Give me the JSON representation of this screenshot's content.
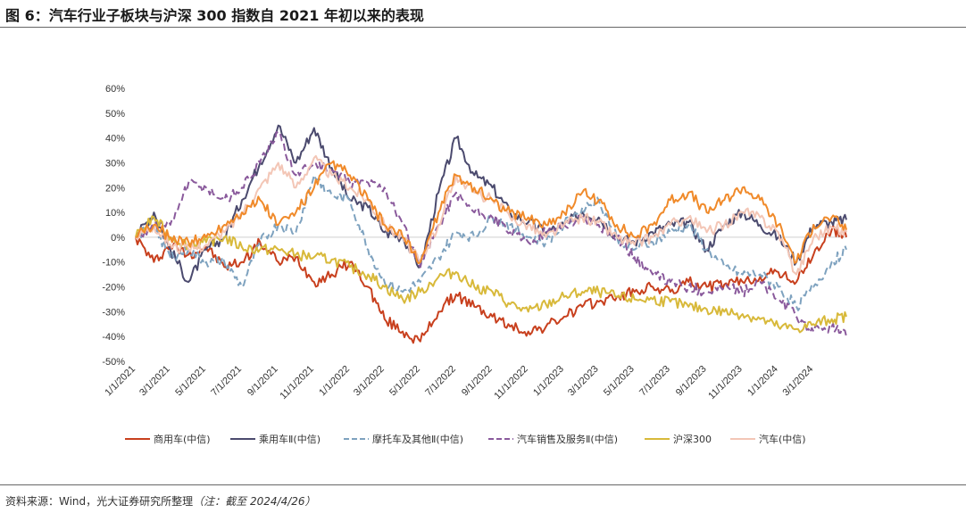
{
  "figure": {
    "title": "图 6：汽车行业子板块与沪深 300 指数自 2021 年初以来的表现",
    "source_text": "资料来源：Wind，光大证券研究所整理",
    "source_note": "（注：截至 2024/4/26）"
  },
  "chart_data": {
    "type": "line",
    "title": "",
    "xlabel": "",
    "ylabel": "",
    "ylim": [
      -0.5,
      0.6
    ],
    "yticks": [
      "60%",
      "50%",
      "40%",
      "30%",
      "20%",
      "10%",
      "0%",
      "-10%",
      "-20%",
      "-30%",
      "-40%",
      "-50%"
    ],
    "xlim": [
      "2021-01-01",
      "2024-04-26"
    ],
    "xticks": [
      "1/1/2021",
      "3/1/2021",
      "5/1/2021",
      "7/1/2021",
      "9/1/2021",
      "11/1/2021",
      "1/1/2022",
      "3/1/2022",
      "5/1/2022",
      "7/1/2022",
      "9/1/2022",
      "11/1/2022",
      "1/1/2023",
      "3/1/2023",
      "5/1/2023",
      "7/1/2023",
      "9/1/2023",
      "11/1/2023",
      "1/1/2024",
      "3/1/2024"
    ],
    "grid": false,
    "legend_position": "bottom",
    "x": [
      "2021-01-01",
      "2021-02-01",
      "2021-03-01",
      "2021-04-01",
      "2021-05-01",
      "2021-06-01",
      "2021-07-01",
      "2021-08-01",
      "2021-09-01",
      "2021-10-01",
      "2021-11-01",
      "2021-12-01",
      "2022-01-01",
      "2022-02-01",
      "2022-03-01",
      "2022-04-01",
      "2022-05-01",
      "2022-06-01",
      "2022-07-01",
      "2022-08-01",
      "2022-09-01",
      "2022-10-01",
      "2022-11-01",
      "2022-12-01",
      "2023-01-01",
      "2023-02-01",
      "2023-03-01",
      "2023-04-01",
      "2023-05-01",
      "2023-06-01",
      "2023-07-01",
      "2023-08-01",
      "2023-09-01",
      "2023-10-01",
      "2023-11-01",
      "2023-12-01",
      "2024-01-01",
      "2024-02-01",
      "2024-03-01",
      "2024-04-01",
      "2024-04-26"
    ],
    "series": [
      {
        "name": "商用车(中信)",
        "color": "#c8401e",
        "dash": "solid",
        "values": [
          0.0,
          -0.1,
          -0.03,
          -0.07,
          -0.04,
          -0.12,
          -0.1,
          -0.02,
          -0.1,
          -0.08,
          -0.18,
          -0.15,
          -0.1,
          -0.2,
          -0.33,
          -0.38,
          -0.42,
          -0.3,
          -0.23,
          -0.28,
          -0.32,
          -0.36,
          -0.38,
          -0.36,
          -0.32,
          -0.28,
          -0.26,
          -0.24,
          -0.22,
          -0.2,
          -0.22,
          -0.18,
          -0.2,
          -0.19,
          -0.18,
          -0.16,
          -0.14,
          -0.18,
          -0.07,
          0.03,
          0.0
        ]
      },
      {
        "name": "乘用车Ⅱ(中信)",
        "color": "#4b4a6e",
        "dash": "solid",
        "values": [
          0.0,
          0.1,
          -0.05,
          -0.18,
          -0.05,
          0.0,
          0.15,
          0.3,
          0.45,
          0.3,
          0.44,
          0.28,
          0.15,
          0.12,
          0.02,
          0.0,
          -0.12,
          0.18,
          0.4,
          0.25,
          0.2,
          0.1,
          0.06,
          0.02,
          0.05,
          0.1,
          0.08,
          0.0,
          -0.02,
          0.02,
          0.05,
          0.06,
          -0.05,
          0.05,
          0.1,
          0.05,
          0.0,
          -0.1,
          0.05,
          0.06,
          0.07
        ]
      },
      {
        "name": "摩托车及其他Ⅱ(中信)",
        "color": "#7ea2bf",
        "dash": "dashed",
        "values": [
          0.0,
          0.05,
          -0.08,
          -0.05,
          -0.1,
          -0.1,
          -0.2,
          -0.02,
          0.05,
          0.02,
          0.25,
          0.17,
          0.15,
          -0.05,
          -0.18,
          -0.22,
          -0.18,
          -0.08,
          0.02,
          0.0,
          0.08,
          0.05,
          0.0,
          -0.02,
          0.05,
          0.12,
          0.15,
          0.0,
          -0.05,
          -0.02,
          0.02,
          0.05,
          -0.05,
          -0.12,
          -0.15,
          -0.15,
          -0.2,
          -0.28,
          -0.2,
          -0.1,
          -0.05
        ]
      },
      {
        "name": "汽车销售及服务Ⅱ(中信)",
        "color": "#8a5a9c",
        "dash": "dashed",
        "values": [
          0.0,
          0.05,
          0.05,
          0.22,
          0.2,
          0.15,
          0.2,
          0.3,
          0.42,
          0.25,
          0.3,
          0.27,
          0.22,
          0.22,
          0.2,
          0.05,
          -0.12,
          0.05,
          0.18,
          0.1,
          0.08,
          0.02,
          -0.02,
          0.02,
          0.05,
          0.08,
          0.05,
          0.0,
          -0.08,
          -0.15,
          -0.18,
          -0.2,
          -0.22,
          -0.2,
          -0.22,
          -0.18,
          -0.25,
          -0.32,
          -0.38,
          -0.36,
          -0.4
        ]
      },
      {
        "name": "沪深300",
        "color": "#d8b93a",
        "dash": "solid",
        "values": [
          0.0,
          0.08,
          0.0,
          -0.03,
          -0.02,
          0.0,
          -0.04,
          -0.05,
          -0.05,
          -0.07,
          -0.08,
          -0.09,
          -0.12,
          -0.15,
          -0.2,
          -0.25,
          -0.22,
          -0.16,
          -0.14,
          -0.2,
          -0.22,
          -0.27,
          -0.3,
          -0.27,
          -0.24,
          -0.22,
          -0.22,
          -0.24,
          -0.25,
          -0.25,
          -0.26,
          -0.28,
          -0.29,
          -0.3,
          -0.31,
          -0.33,
          -0.36,
          -0.37,
          -0.35,
          -0.33,
          -0.32
        ]
      },
      {
        "name": "汽车(中信)",
        "color": "#f3c6b6",
        "dash": "solid",
        "values": [
          0.0,
          0.05,
          -0.03,
          -0.05,
          -0.03,
          0.02,
          0.1,
          0.2,
          0.3,
          0.2,
          0.32,
          0.25,
          0.2,
          0.15,
          0.05,
          0.0,
          -0.1,
          0.05,
          0.25,
          0.18,
          0.15,
          0.08,
          0.05,
          0.0,
          0.05,
          0.08,
          0.06,
          0.0,
          -0.03,
          0.0,
          0.05,
          0.08,
          0.02,
          0.05,
          0.1,
          0.08,
          0.02,
          -0.15,
          0.0,
          0.04,
          0.02
        ]
      },
      {
        "name": "",
        "color": "#f08a2a",
        "dash": "solid",
        "values": [
          0.0,
          0.05,
          0.0,
          -0.02,
          0.0,
          0.05,
          0.1,
          0.15,
          0.05,
          0.1,
          0.2,
          0.3,
          0.25,
          0.15,
          0.05,
          0.0,
          -0.1,
          0.1,
          0.25,
          0.2,
          0.15,
          0.1,
          0.08,
          0.05,
          0.1,
          0.18,
          0.15,
          0.05,
          0.0,
          0.05,
          0.15,
          0.18,
          0.1,
          0.15,
          0.2,
          0.15,
          0.05,
          -0.1,
          0.05,
          0.08,
          0.03
        ]
      }
    ]
  }
}
